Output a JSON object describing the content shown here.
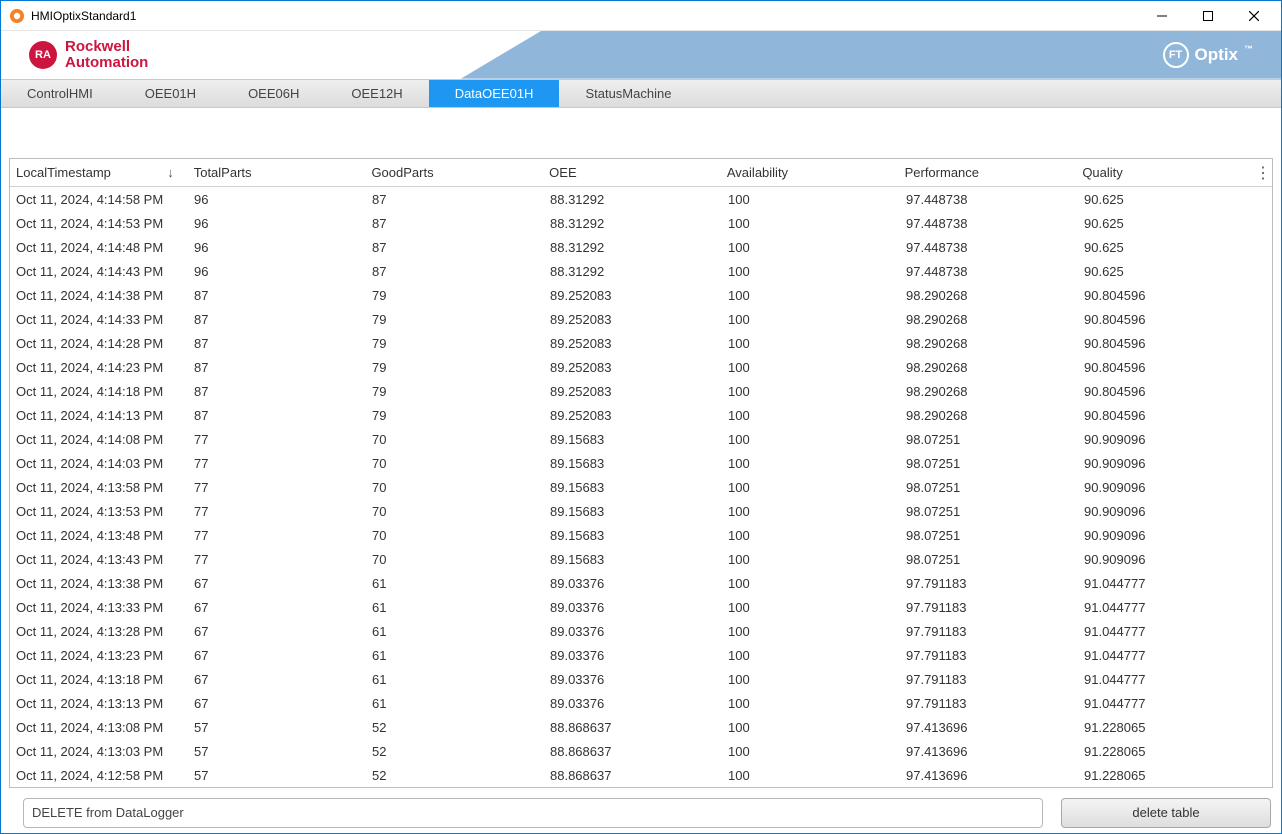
{
  "window": {
    "title": "HMIOptixStandard1"
  },
  "brand": {
    "icon_text": "RA",
    "line1": "Rockwell",
    "line2": "Automation",
    "color": "#cd163f"
  },
  "product_badge": {
    "circle": "FT",
    "text": "Optix",
    "tm": "™"
  },
  "tabs": {
    "items": [
      {
        "label": "ControlHMI",
        "active": false
      },
      {
        "label": "OEE01H",
        "active": false
      },
      {
        "label": "OEE06H",
        "active": false
      },
      {
        "label": "OEE12H",
        "active": false
      },
      {
        "label": "DataOEE01H",
        "active": true
      },
      {
        "label": "StatusMachine",
        "active": false
      }
    ],
    "active_bg": "#1e97f3"
  },
  "grid": {
    "columns": [
      {
        "label": "LocalTimestamp",
        "sort": "desc"
      },
      {
        "label": "TotalParts"
      },
      {
        "label": "GoodParts"
      },
      {
        "label": "OEE"
      },
      {
        "label": "Availability"
      },
      {
        "label": "Performance"
      },
      {
        "label": "Quality"
      }
    ],
    "menu_icon": "⋮",
    "sort_icon": "↓",
    "rows": [
      [
        "Oct 11, 2024, 4:14:58 PM",
        "96",
        "87",
        "88.31292",
        "100",
        "97.448738",
        "90.625"
      ],
      [
        "Oct 11, 2024, 4:14:53 PM",
        "96",
        "87",
        "88.31292",
        "100",
        "97.448738",
        "90.625"
      ],
      [
        "Oct 11, 2024, 4:14:48 PM",
        "96",
        "87",
        "88.31292",
        "100",
        "97.448738",
        "90.625"
      ],
      [
        "Oct 11, 2024, 4:14:43 PM",
        "96",
        "87",
        "88.31292",
        "100",
        "97.448738",
        "90.625"
      ],
      [
        "Oct 11, 2024, 4:14:38 PM",
        "87",
        "79",
        "89.252083",
        "100",
        "98.290268",
        "90.804596"
      ],
      [
        "Oct 11, 2024, 4:14:33 PM",
        "87",
        "79",
        "89.252083",
        "100",
        "98.290268",
        "90.804596"
      ],
      [
        "Oct 11, 2024, 4:14:28 PM",
        "87",
        "79",
        "89.252083",
        "100",
        "98.290268",
        "90.804596"
      ],
      [
        "Oct 11, 2024, 4:14:23 PM",
        "87",
        "79",
        "89.252083",
        "100",
        "98.290268",
        "90.804596"
      ],
      [
        "Oct 11, 2024, 4:14:18 PM",
        "87",
        "79",
        "89.252083",
        "100",
        "98.290268",
        "90.804596"
      ],
      [
        "Oct 11, 2024, 4:14:13 PM",
        "87",
        "79",
        "89.252083",
        "100",
        "98.290268",
        "90.804596"
      ],
      [
        "Oct 11, 2024, 4:14:08 PM",
        "77",
        "70",
        "89.15683",
        "100",
        "98.07251",
        "90.909096"
      ],
      [
        "Oct 11, 2024, 4:14:03 PM",
        "77",
        "70",
        "89.15683",
        "100",
        "98.07251",
        "90.909096"
      ],
      [
        "Oct 11, 2024, 4:13:58 PM",
        "77",
        "70",
        "89.15683",
        "100",
        "98.07251",
        "90.909096"
      ],
      [
        "Oct 11, 2024, 4:13:53 PM",
        "77",
        "70",
        "89.15683",
        "100",
        "98.07251",
        "90.909096"
      ],
      [
        "Oct 11, 2024, 4:13:48 PM",
        "77",
        "70",
        "89.15683",
        "100",
        "98.07251",
        "90.909096"
      ],
      [
        "Oct 11, 2024, 4:13:43 PM",
        "77",
        "70",
        "89.15683",
        "100",
        "98.07251",
        "90.909096"
      ],
      [
        "Oct 11, 2024, 4:13:38 PM",
        "67",
        "61",
        "89.03376",
        "100",
        "97.791183",
        "91.044777"
      ],
      [
        "Oct 11, 2024, 4:13:33 PM",
        "67",
        "61",
        "89.03376",
        "100",
        "97.791183",
        "91.044777"
      ],
      [
        "Oct 11, 2024, 4:13:28 PM",
        "67",
        "61",
        "89.03376",
        "100",
        "97.791183",
        "91.044777"
      ],
      [
        "Oct 11, 2024, 4:13:23 PM",
        "67",
        "61",
        "89.03376",
        "100",
        "97.791183",
        "91.044777"
      ],
      [
        "Oct 11, 2024, 4:13:18 PM",
        "67",
        "61",
        "89.03376",
        "100",
        "97.791183",
        "91.044777"
      ],
      [
        "Oct 11, 2024, 4:13:13 PM",
        "67",
        "61",
        "89.03376",
        "100",
        "97.791183",
        "91.044777"
      ],
      [
        "Oct 11, 2024, 4:13:08 PM",
        "57",
        "52",
        "88.868637",
        "100",
        "97.413696",
        "91.228065"
      ],
      [
        "Oct 11, 2024, 4:13:03 PM",
        "57",
        "52",
        "88.868637",
        "100",
        "97.413696",
        "91.228065"
      ],
      [
        "Oct 11, 2024, 4:12:58 PM",
        "57",
        "52",
        "88.868637",
        "100",
        "97.413696",
        "91.228065"
      ]
    ]
  },
  "footer": {
    "sql_value": "DELETE from DataLogger",
    "delete_label": "delete table"
  },
  "colors": {
    "header_band": "#90b6da",
    "window_border": "#0078d4"
  }
}
